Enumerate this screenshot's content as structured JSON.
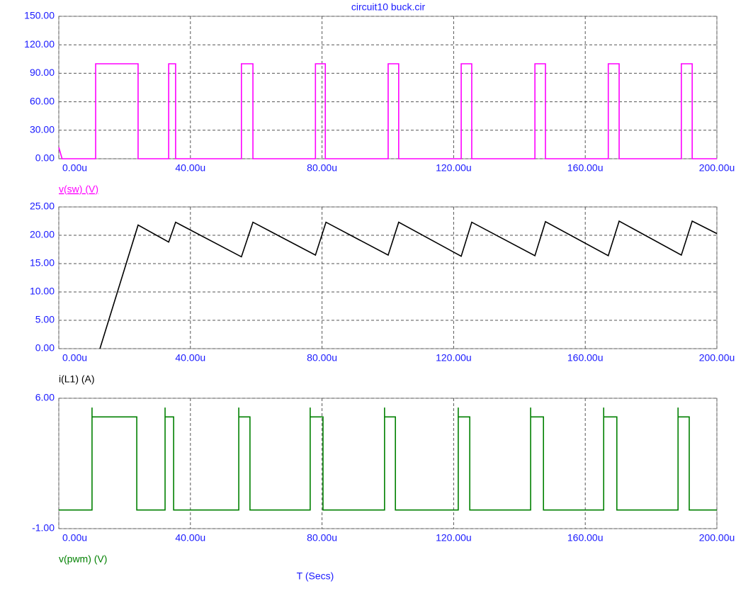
{
  "chart_data": [
    {
      "type": "line",
      "title": "circuit10 buck.cir",
      "grid": true,
      "xlim": [
        0,
        200
      ],
      "xticks": [
        {
          "value": 0,
          "label": "0.00u"
        },
        {
          "value": 40,
          "label": "40.00u"
        },
        {
          "value": 80,
          "label": "80.00u"
        },
        {
          "value": 120,
          "label": "120.00u"
        },
        {
          "value": 160,
          "label": "160.00u"
        },
        {
          "value": 200,
          "label": "200.00u"
        }
      ],
      "ylim": [
        0,
        150
      ],
      "yticks": [
        {
          "value": 0,
          "label": "0.00"
        },
        {
          "value": 30,
          "label": "30.00"
        },
        {
          "value": 60,
          "label": "60.00"
        },
        {
          "value": 90,
          "label": "90.00"
        },
        {
          "value": 120,
          "label": "120.00"
        },
        {
          "value": 150,
          "label": "150.00"
        }
      ],
      "series": [
        {
          "name": "v(sw) (V)",
          "color": "#ff00ff",
          "x": [
            0,
            1,
            11.2,
            11.2,
            24.1,
            24.1,
            33.4,
            33.4,
            35.5,
            35.5,
            55.5,
            55.5,
            59,
            59,
            78,
            78,
            81,
            81,
            100.1,
            100.1,
            103.3,
            103.3,
            122.3,
            122.3,
            125.5,
            125.5,
            144.7,
            144.7,
            147.9,
            147.9,
            167,
            167,
            170.3,
            170.3,
            189.2,
            189.2,
            192.5,
            192.5,
            200
          ],
          "values": [
            12,
            0,
            0,
            100,
            100,
            0,
            0,
            100,
            100,
            0,
            0,
            100,
            100,
            0,
            0,
            100,
            100,
            0,
            0,
            100,
            100,
            0,
            0,
            100,
            100,
            0,
            0,
            100,
            100,
            0,
            0,
            100,
            100,
            0,
            0,
            100,
            100,
            0,
            0
          ]
        }
      ]
    },
    {
      "type": "line",
      "grid": true,
      "xlim": [
        0,
        200
      ],
      "xticks": [
        {
          "value": 0,
          "label": "0.00u"
        },
        {
          "value": 40,
          "label": "40.00u"
        },
        {
          "value": 80,
          "label": "80.00u"
        },
        {
          "value": 120,
          "label": "120.00u"
        },
        {
          "value": 160,
          "label": "160.00u"
        },
        {
          "value": 200,
          "label": "200.00u"
        }
      ],
      "ylim": [
        0,
        25
      ],
      "yticks": [
        {
          "value": 0,
          "label": "0.00"
        },
        {
          "value": 5,
          "label": "5.00"
        },
        {
          "value": 10,
          "label": "10.00"
        },
        {
          "value": 15,
          "label": "15.00"
        },
        {
          "value": 20,
          "label": "20.00"
        },
        {
          "value": 25,
          "label": "25.00"
        }
      ],
      "series": [
        {
          "name": "i(L1) (A)",
          "color": "#000000",
          "x": [
            12.5,
            24.1,
            33.4,
            35.5,
            55.5,
            59,
            78,
            81.2,
            100.1,
            103.3,
            122.3,
            125.5,
            144.7,
            147.9,
            167,
            170.3,
            189.2,
            192.5,
            200
          ],
          "values": [
            0,
            21.8,
            18.8,
            22.3,
            16.2,
            22.3,
            16.5,
            22.3,
            16.5,
            22.3,
            16.3,
            22.3,
            16.4,
            22.4,
            16.4,
            22.5,
            16.5,
            22.5,
            20.3
          ]
        }
      ]
    },
    {
      "type": "line",
      "grid": true,
      "xlabel": "T (Secs)",
      "xlim": [
        0,
        200
      ],
      "xticks": [
        {
          "value": 0,
          "label": "0.00u"
        },
        {
          "value": 40,
          "label": "40.00u"
        },
        {
          "value": 80,
          "label": "80.00u"
        },
        {
          "value": 120,
          "label": "120.00u"
        },
        {
          "value": 160,
          "label": "160.00u"
        },
        {
          "value": 200,
          "label": "200.00u"
        }
      ],
      "ylim": [
        -1,
        6
      ],
      "yticks": [
        {
          "value": -1,
          "label": "-1.00"
        },
        {
          "value": 6,
          "label": "6.00"
        }
      ],
      "series": [
        {
          "name": "v(pwm) (V)",
          "color": "#008000",
          "x": [
            0,
            10.1,
            10.1,
            10.1,
            23.7,
            23.7,
            32.3,
            32.3,
            32.3,
            34.9,
            34.9,
            54.7,
            54.7,
            54.7,
            58.1,
            58.1,
            76.4,
            76.4,
            76.4,
            80.3,
            80.3,
            99,
            99,
            99,
            102.3,
            102.3,
            121.4,
            121.4,
            121.4,
            124.9,
            124.9,
            143.4,
            143.4,
            143.4,
            147.3,
            147.3,
            165.6,
            165.6,
            165.6,
            169.6,
            169.6,
            188.2,
            188.2,
            188.2,
            191.6,
            191.6,
            200
          ],
          "values": [
            0,
            0,
            5.5,
            5,
            5,
            0,
            0,
            5.5,
            5,
            5,
            0,
            0,
            5.5,
            5,
            5,
            0,
            0,
            5.5,
            5,
            5,
            0,
            0,
            5.5,
            5,
            5,
            0,
            0,
            5.5,
            5,
            5,
            0,
            0,
            5.5,
            5,
            5,
            0,
            0,
            5.5,
            5,
            5,
            0,
            0,
            5.5,
            5,
            5,
            0,
            0
          ]
        }
      ]
    }
  ]
}
